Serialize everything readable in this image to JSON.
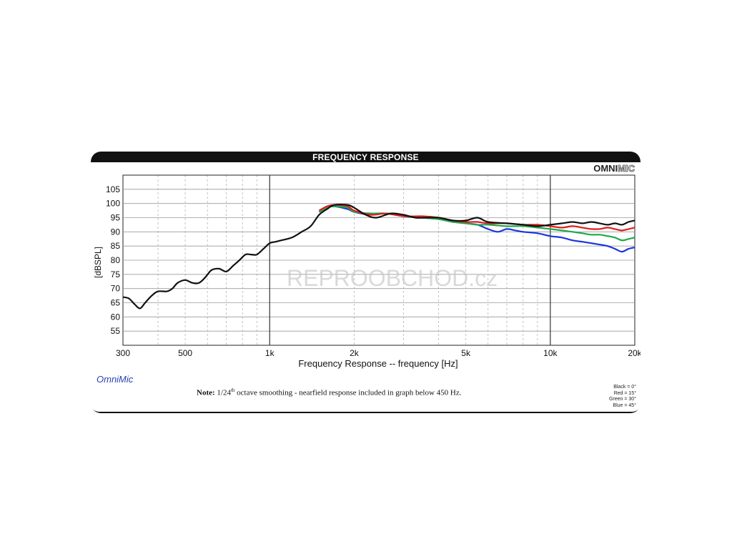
{
  "header": {
    "title": "FREQUENCY RESPONSE"
  },
  "brand": {
    "bold": "OMNI",
    "light": "MIC"
  },
  "watermark": "REPROOBCHOD.cz",
  "footer": {
    "logo_text": "OmniMic",
    "note_label": "Note:",
    "note_pre": "1/24",
    "note_sup": "th",
    "note_post": "octave smoothing - nearfield response included in graph below 450 Hz."
  },
  "legend": [
    "Black = 0°",
    "Red = 15°",
    "Green = 30°",
    "Blue = 45°"
  ],
  "chart_data": {
    "type": "line",
    "xlabel": "Frequency Response -- frequency [Hz]",
    "ylabel": "[dBSPL]",
    "x_scale": "log",
    "xlim": [
      300,
      20000
    ],
    "ylim": [
      50,
      110
    ],
    "x_ticks": [
      {
        "v": 300,
        "label": "300"
      },
      {
        "v": 500,
        "label": "500"
      },
      {
        "v": 1000,
        "label": "1k"
      },
      {
        "v": 2000,
        "label": "2k"
      },
      {
        "v": 5000,
        "label": "5k"
      },
      {
        "v": 10000,
        "label": "10k"
      },
      {
        "v": 20000,
        "label": "20k"
      }
    ],
    "y_ticks": [
      55,
      60,
      65,
      70,
      75,
      80,
      85,
      90,
      95,
      100,
      105
    ],
    "grid": true,
    "series": [
      {
        "name": "Blue = 45°",
        "color": "#1a35e0",
        "points": [
          [
            1500,
            97
          ],
          [
            1600,
            98.5
          ],
          [
            1700,
            99
          ],
          [
            1900,
            98
          ],
          [
            2000,
            97
          ],
          [
            2300,
            96
          ],
          [
            2600,
            96.5
          ],
          [
            3000,
            95.5
          ],
          [
            3500,
            95
          ],
          [
            4000,
            94.5
          ],
          [
            4500,
            93.5
          ],
          [
            5000,
            93
          ],
          [
            5500,
            92.5
          ],
          [
            6000,
            91
          ],
          [
            6500,
            90
          ],
          [
            7000,
            91
          ],
          [
            7500,
            90.5
          ],
          [
            8000,
            90
          ],
          [
            9000,
            89.5
          ],
          [
            10000,
            88.5
          ],
          [
            11000,
            88
          ],
          [
            12000,
            87
          ],
          [
            13000,
            86.5
          ],
          [
            14000,
            86
          ],
          [
            15000,
            85.5
          ],
          [
            16000,
            85
          ],
          [
            17000,
            84
          ],
          [
            18000,
            83
          ],
          [
            19000,
            84
          ],
          [
            20000,
            84.5
          ]
        ]
      },
      {
        "name": "Green = 30°",
        "color": "#1fa84a",
        "points": [
          [
            1500,
            97
          ],
          [
            1600,
            98.5
          ],
          [
            1700,
            99
          ],
          [
            1900,
            98.5
          ],
          [
            2000,
            97
          ],
          [
            2300,
            96.5
          ],
          [
            2600,
            96.5
          ],
          [
            3000,
            95.5
          ],
          [
            3500,
            95
          ],
          [
            4000,
            94.5
          ],
          [
            4500,
            93.5
          ],
          [
            5000,
            93
          ],
          [
            5500,
            92.5
          ],
          [
            6000,
            92.5
          ],
          [
            7000,
            92
          ],
          [
            8000,
            92
          ],
          [
            9000,
            91.5
          ],
          [
            10000,
            91
          ],
          [
            11000,
            90.5
          ],
          [
            12000,
            90
          ],
          [
            13000,
            89.5
          ],
          [
            14000,
            89
          ],
          [
            15000,
            89
          ],
          [
            16000,
            88.5
          ],
          [
            17000,
            88
          ],
          [
            18000,
            87
          ],
          [
            19000,
            87.5
          ],
          [
            20000,
            88
          ]
        ]
      },
      {
        "name": "Red = 15°",
        "color": "#e21b1b",
        "points": [
          [
            1500,
            97.5
          ],
          [
            1600,
            99
          ],
          [
            1700,
            99.5
          ],
          [
            1900,
            99
          ],
          [
            2000,
            97.5
          ],
          [
            2300,
            96
          ],
          [
            2600,
            96.5
          ],
          [
            3000,
            95.5
          ],
          [
            3500,
            95.5
          ],
          [
            4000,
            95
          ],
          [
            4500,
            94
          ],
          [
            5000,
            93.5
          ],
          [
            5500,
            93.5
          ],
          [
            6000,
            93
          ],
          [
            7000,
            93
          ],
          [
            8000,
            92.5
          ],
          [
            9000,
            92.5
          ],
          [
            10000,
            92
          ],
          [
            11000,
            91.5
          ],
          [
            12000,
            92
          ],
          [
            13000,
            91.5
          ],
          [
            14000,
            91
          ],
          [
            15000,
            91
          ],
          [
            16000,
            91.5
          ],
          [
            17000,
            91
          ],
          [
            18000,
            90.5
          ],
          [
            19000,
            91
          ],
          [
            20000,
            91.5
          ]
        ]
      },
      {
        "name": "Black = 0°",
        "color": "#111111",
        "points": [
          [
            300,
            67
          ],
          [
            315,
            66.5
          ],
          [
            330,
            64.5
          ],
          [
            345,
            63
          ],
          [
            360,
            65
          ],
          [
            380,
            67.5
          ],
          [
            400,
            69
          ],
          [
            430,
            69
          ],
          [
            450,
            70
          ],
          [
            470,
            72
          ],
          [
            500,
            73
          ],
          [
            530,
            72
          ],
          [
            560,
            72
          ],
          [
            590,
            74
          ],
          [
            620,
            76.5
          ],
          [
            660,
            77
          ],
          [
            700,
            76
          ],
          [
            740,
            78
          ],
          [
            780,
            80
          ],
          [
            820,
            82
          ],
          [
            860,
            82
          ],
          [
            900,
            82
          ],
          [
            950,
            84
          ],
          [
            1000,
            86
          ],
          [
            1050,
            86.5
          ],
          [
            1100,
            87
          ],
          [
            1200,
            88
          ],
          [
            1300,
            90
          ],
          [
            1400,
            92
          ],
          [
            1500,
            96
          ],
          [
            1600,
            98
          ],
          [
            1700,
            99.5
          ],
          [
            1900,
            99.5
          ],
          [
            2000,
            98.5
          ],
          [
            2200,
            96
          ],
          [
            2400,
            95
          ],
          [
            2700,
            96.5
          ],
          [
            3000,
            96
          ],
          [
            3300,
            95
          ],
          [
            3600,
            95
          ],
          [
            4000,
            95
          ],
          [
            4500,
            94
          ],
          [
            5000,
            94
          ],
          [
            5500,
            95
          ],
          [
            6000,
            93.5
          ],
          [
            7000,
            93
          ],
          [
            8000,
            92.5
          ],
          [
            9000,
            92
          ],
          [
            10000,
            92.5
          ],
          [
            11000,
            93
          ],
          [
            12000,
            93.5
          ],
          [
            13000,
            93
          ],
          [
            14000,
            93.5
          ],
          [
            15000,
            93
          ],
          [
            16000,
            92.5
          ],
          [
            17000,
            93
          ],
          [
            18000,
            92.5
          ],
          [
            19000,
            93.5
          ],
          [
            20000,
            94
          ]
        ]
      }
    ]
  }
}
